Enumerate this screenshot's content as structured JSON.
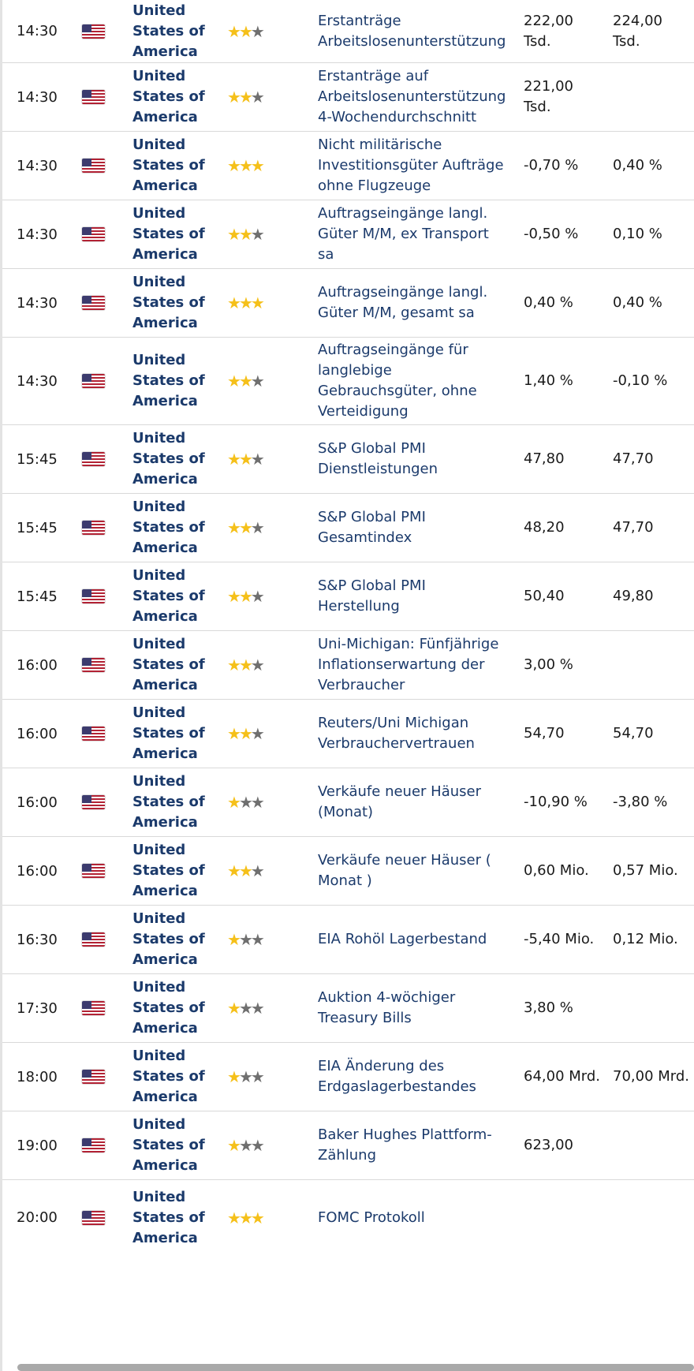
{
  "colors": {
    "link": "#1b3a6b",
    "star_active": "#f5c01a",
    "star_inactive": "#6f6f6f",
    "divider": "#d9d9d9"
  },
  "icons": {
    "flag": "us-flag-icon",
    "star": "star-icon"
  },
  "rows": [
    {
      "time": "14:30",
      "country": "United States of America",
      "importance": 2,
      "event": "Erstanträge Arbeitslosenunterstützung",
      "actual": "222,00 Tsd.",
      "forecast": "224,00 Tsd."
    },
    {
      "time": "14:30",
      "country": "United States of America",
      "importance": 2,
      "event": "Erstanträge auf Arbeitslosenunterstützung 4-Wochendurchschnitt",
      "actual": "221,00 Tsd.",
      "forecast": ""
    },
    {
      "time": "14:30",
      "country": "United States of America",
      "importance": 3,
      "event": "Nicht militärische Investitionsgüter Aufträge ohne Flugzeuge",
      "actual": "-0,70 %",
      "forecast": "0,40 %"
    },
    {
      "time": "14:30",
      "country": "United States of America",
      "importance": 2,
      "event": "Auftragseingänge langl. Güter M/M, ex Transport sa",
      "actual": "-0,50 %",
      "forecast": "0,10 %"
    },
    {
      "time": "14:30",
      "country": "United States of America",
      "importance": 3,
      "event": "Auftragseingänge langl. Güter M/M, gesamt sa",
      "actual": "0,40 %",
      "forecast": "0,40 %"
    },
    {
      "time": "14:30",
      "country": "United States of America",
      "importance": 2,
      "event": "Auftragseingänge für langlebige Gebrauchsgüter, ohne Verteidigung",
      "actual": "1,40 %",
      "forecast": "-0,10 %"
    },
    {
      "time": "15:45",
      "country": "United States of America",
      "importance": 2,
      "event": "S&P Global PMI Dienstleistungen",
      "actual": "47,80",
      "forecast": "47,70"
    },
    {
      "time": "15:45",
      "country": "United States of America",
      "importance": 2,
      "event": "S&P Global PMI Gesamtindex",
      "actual": "48,20",
      "forecast": "47,70"
    },
    {
      "time": "15:45",
      "country": "United States of America",
      "importance": 2,
      "event": "S&P Global PMI Herstellung",
      "actual": "50,40",
      "forecast": "49,80"
    },
    {
      "time": "16:00",
      "country": "United States of America",
      "importance": 2,
      "event": "Uni-Michigan: Fünfjährige Inflationserwartung der Verbraucher",
      "actual": "3,00 %",
      "forecast": ""
    },
    {
      "time": "16:00",
      "country": "United States of America",
      "importance": 2,
      "event": "Reuters/Uni Michigan Verbrauchervertrauen",
      "actual": "54,70",
      "forecast": "54,70"
    },
    {
      "time": "16:00",
      "country": "United States of America",
      "importance": 1,
      "event": "Verkäufe neuer Häuser (Monat)",
      "actual": "-10,90 %",
      "forecast": "-3,80 %"
    },
    {
      "time": "16:00",
      "country": "United States of America",
      "importance": 2,
      "event": "Verkäufe neuer Häuser ( Monat )",
      "actual": "0,60 Mio.",
      "forecast": "0,57 Mio."
    },
    {
      "time": "16:30",
      "country": "United States of America",
      "importance": 1,
      "event": "EIA Rohöl Lagerbestand",
      "actual": "-5,40 Mio.",
      "forecast": "0,12 Mio."
    },
    {
      "time": "17:30",
      "country": "United States of America",
      "importance": 1,
      "event": "Auktion 4-wöchiger Treasury Bills",
      "actual": "3,80 %",
      "forecast": ""
    },
    {
      "time": "18:00",
      "country": "United States of America",
      "importance": 1,
      "event": "EIA Änderung des Erdgaslagerbestandes",
      "actual": "64,00 Mrd.",
      "forecast": "70,00 Mrd."
    },
    {
      "time": "19:00",
      "country": "United States of America",
      "importance": 1,
      "event": "Baker Hughes Plattform-Zählung",
      "actual": "623,00",
      "forecast": ""
    },
    {
      "time": "20:00",
      "country": "United States of America",
      "importance": 3,
      "event": "FOMC Protokoll",
      "actual": "",
      "forecast": ""
    }
  ]
}
